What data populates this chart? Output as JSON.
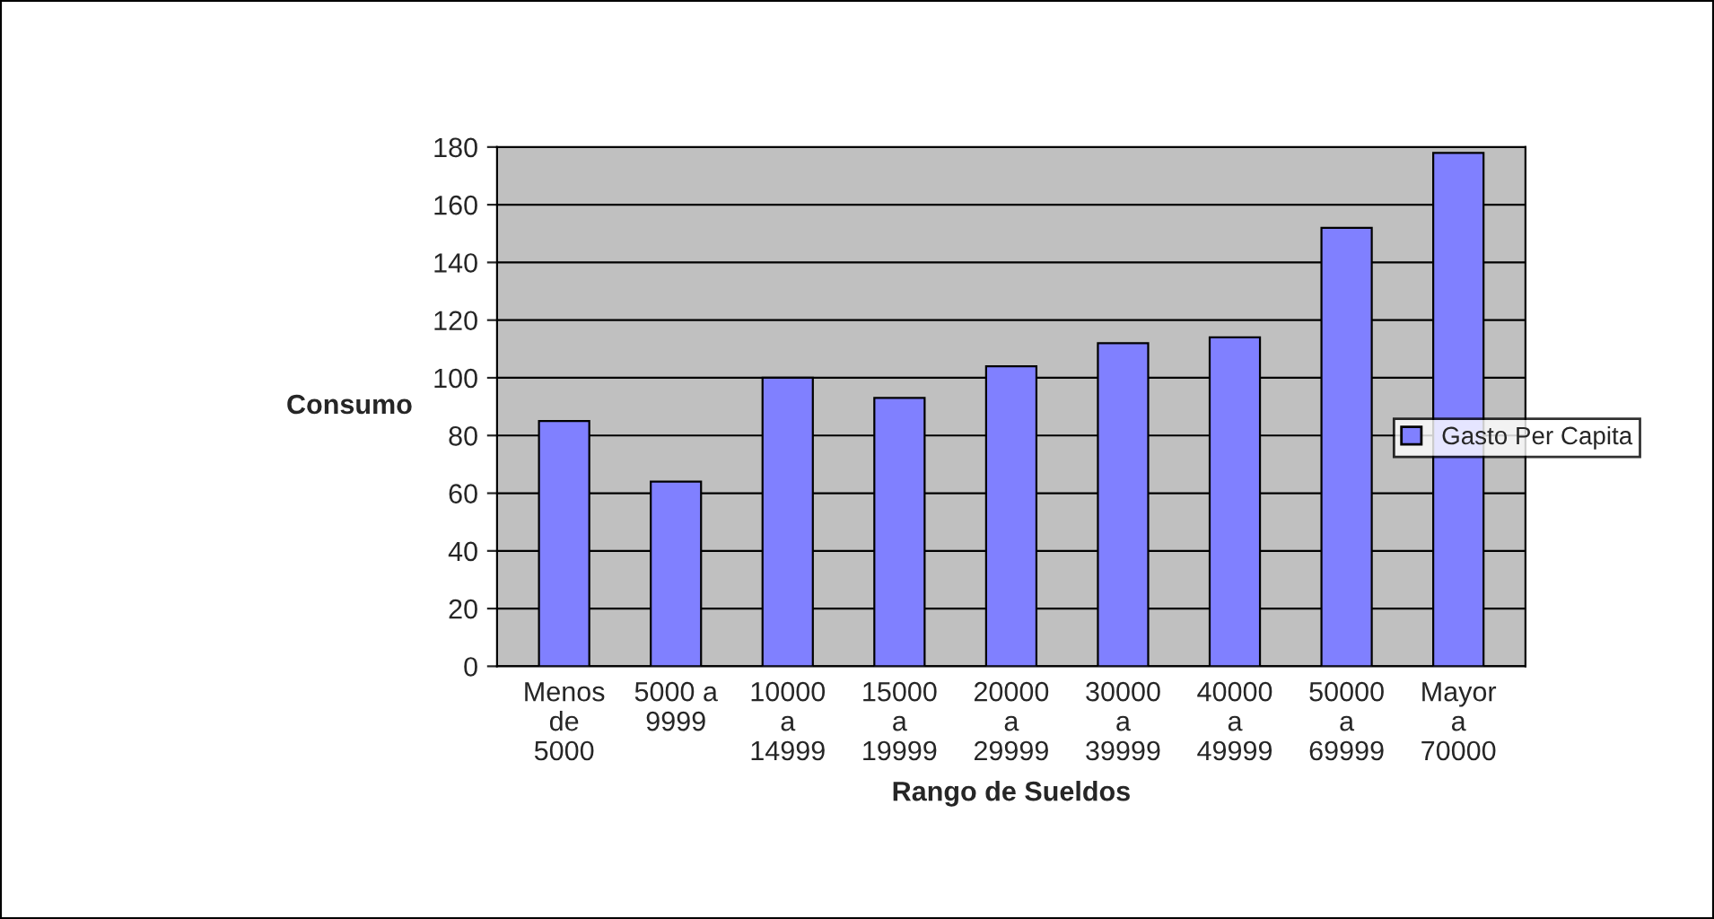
{
  "chart_data": {
    "type": "bar",
    "xlabel": "Rango de Sueldos",
    "ylabel": "Consumo",
    "categories": [
      "Menos\nde\n5000",
      "5000 a\n9999",
      "10000\na\n14999",
      "15000\na\n19999",
      "20000\na\n29999",
      "30000\na\n39999",
      "40000\na\n49999",
      "50000\na\n69999",
      "Mayor\na\n70000"
    ],
    "series": [
      {
        "name": "Gasto Per Capita",
        "color": "#8080ff",
        "values": [
          85,
          64,
          100,
          93,
          104,
          112,
          114,
          152,
          178
        ]
      }
    ],
    "ylim": [
      0,
      180
    ],
    "yticks": [
      0,
      20,
      40,
      60,
      80,
      100,
      120,
      140,
      160,
      180
    ],
    "grid": "y",
    "legend": "right"
  }
}
